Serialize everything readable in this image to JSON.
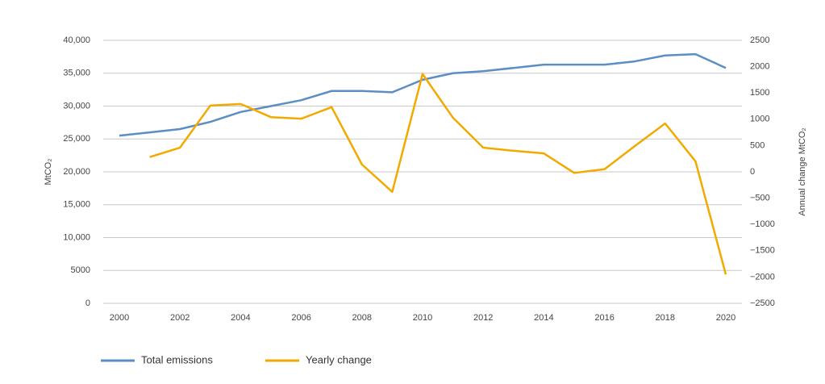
{
  "chart_data": {
    "type": "line",
    "x": [
      2000,
      2001,
      2002,
      2003,
      2004,
      2005,
      2006,
      2007,
      2008,
      2009,
      2010,
      2011,
      2012,
      2013,
      2014,
      2015,
      2016,
      2017,
      2018,
      2019,
      2020
    ],
    "xlim": [
      2000,
      2020
    ],
    "xticks": [
      2000,
      2002,
      2004,
      2006,
      2008,
      2010,
      2012,
      2014,
      2016,
      2018,
      2020
    ],
    "ylabel": "MtCO₂",
    "y2label": "Annual change MtCO₂",
    "ylim": [
      0,
      40000
    ],
    "yticks": [
      0,
      5000,
      {
        "value": 10000,
        "label": "10,000"
      },
      {
        "value": 15000,
        "label": "15,000"
      },
      {
        "value": 20000,
        "label": "20,000"
      },
      {
        "value": 25000,
        "label": "25,000"
      },
      {
        "value": 30000,
        "label": "30,000"
      },
      {
        "value": 35000,
        "label": "35,000"
      },
      {
        "value": 40000,
        "label": "40,000"
      }
    ],
    "y2lim": [
      -2500,
      2500
    ],
    "y2ticks": [
      {
        "value": -2500,
        "label": "−2500"
      },
      {
        "value": -2000,
        "label": "−2000"
      },
      {
        "value": -1500,
        "label": "−1500"
      },
      {
        "value": -1000,
        "label": "−1000"
      },
      {
        "value": -500,
        "label": "−500"
      },
      0,
      500,
      1000,
      1500,
      2000,
      2500
    ],
    "grid": true,
    "series": [
      {
        "name": "Total emissions",
        "color": "#5b8fc4",
        "values": [
          25500,
          26000,
          26500,
          27600,
          29100,
          30000,
          30900,
          32300,
          32300,
          32100,
          34000,
          35000,
          35300,
          35800,
          36300,
          36300,
          36300,
          36800,
          37700,
          37900,
          35800
        ]
      },
      {
        "name": "Yearly change",
        "color": "#f2a900",
        "axis": "y2",
        "values": [
          null,
          280,
          460,
          1260,
          1290,
          1040,
          1010,
          1230,
          140,
          -380,
          1860,
          1030,
          460,
          400,
          350,
          -20,
          50,
          490,
          920,
          200,
          -1950
        ]
      }
    ]
  }
}
